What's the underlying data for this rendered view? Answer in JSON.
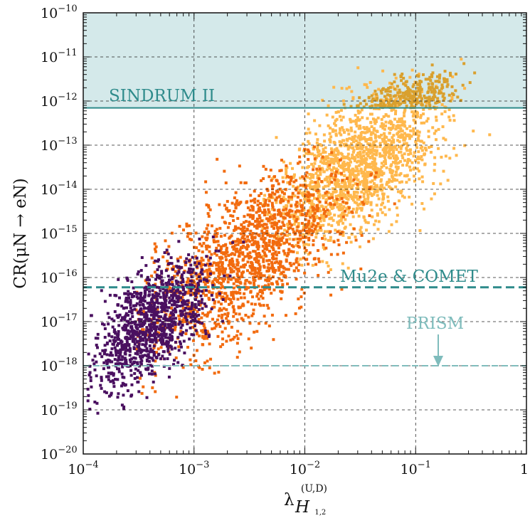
{
  "chart_data": {
    "type": "scatter",
    "title": "",
    "xlabel": "λ",
    "xlabel_super": "(U,D)",
    "xlabel_sub": "H",
    "xlabel_subsub": "1,2",
    "ylabel": "CR(μN → eN)",
    "x_scale": "log",
    "y_scale": "log",
    "xlim": [
      0.0001,
      1
    ],
    "ylim": [
      1e-20,
      1e-10
    ],
    "grid": "dashed",
    "x_ticks": [
      {
        "base": "10",
        "exp": "−4",
        "value": 0.0001
      },
      {
        "base": "10",
        "exp": "−3",
        "value": 0.001
      },
      {
        "base": "10",
        "exp": "−2",
        "value": 0.01
      },
      {
        "base": "10",
        "exp": "−1",
        "value": 0.1
      },
      {
        "base": "1",
        "exp": "",
        "value": 1
      }
    ],
    "y_ticks": [
      {
        "base": "10",
        "exp": "−10",
        "value": 1e-10
      },
      {
        "base": "10",
        "exp": "−11",
        "value": 1e-11
      },
      {
        "base": "10",
        "exp": "−12",
        "value": 1e-12
      },
      {
        "base": "10",
        "exp": "−13",
        "value": 1e-13
      },
      {
        "base": "10",
        "exp": "−14",
        "value": 1e-14
      },
      {
        "base": "10",
        "exp": "−15",
        "value": 1e-15
      },
      {
        "base": "10",
        "exp": "−16",
        "value": 1e-16
      },
      {
        "base": "10",
        "exp": "−17",
        "value": 1e-17
      },
      {
        "base": "10",
        "exp": "−18",
        "value": 1e-18
      },
      {
        "base": "10",
        "exp": "−19",
        "value": 1e-19
      },
      {
        "base": "10",
        "exp": "−20",
        "value": 1e-20
      }
    ],
    "excluded_region": {
      "y_from": 7e-13,
      "y_to": 1e-10,
      "color": "#d4e9ea"
    },
    "limits": [
      {
        "label": "SINDRUM II",
        "value": 7e-13,
        "style": "solid",
        "color": "#2e8b8b"
      },
      {
        "label": "Mu2e & COMET",
        "value": 6e-17,
        "style": "dashed",
        "color": "#2e8b8b"
      },
      {
        "label": "PRISM",
        "value": 1e-18,
        "style": "dashed",
        "color": "#7fbcbc"
      }
    ],
    "series": [
      {
        "color": "#ffb84d",
        "x_range": [
          0.004,
          0.7
        ],
        "y_range": [
          1e-17,
          1e-11
        ],
        "centre": [
          0.03,
          3e-14
        ],
        "count": 1600
      },
      {
        "color": "#d9a02e",
        "x_range": [
          0.02,
          0.5
        ],
        "y_range": [
          7e-13,
          1e-10
        ],
        "centre": [
          0.08,
          1e-12
        ],
        "count": 420
      },
      {
        "color": "#f26b0f",
        "x_range": [
          0.0003,
          0.12
        ],
        "y_range": [
          1e-20,
          1e-13
        ],
        "centre": [
          0.003,
          3e-16
        ],
        "count": 1500
      },
      {
        "color": "#4a1060",
        "x_range": [
          0.00011,
          0.004
        ],
        "y_range": [
          1e-20,
          1e-15
        ],
        "centre": [
          0.0004,
          1e-17
        ],
        "count": 1100
      }
    ]
  }
}
